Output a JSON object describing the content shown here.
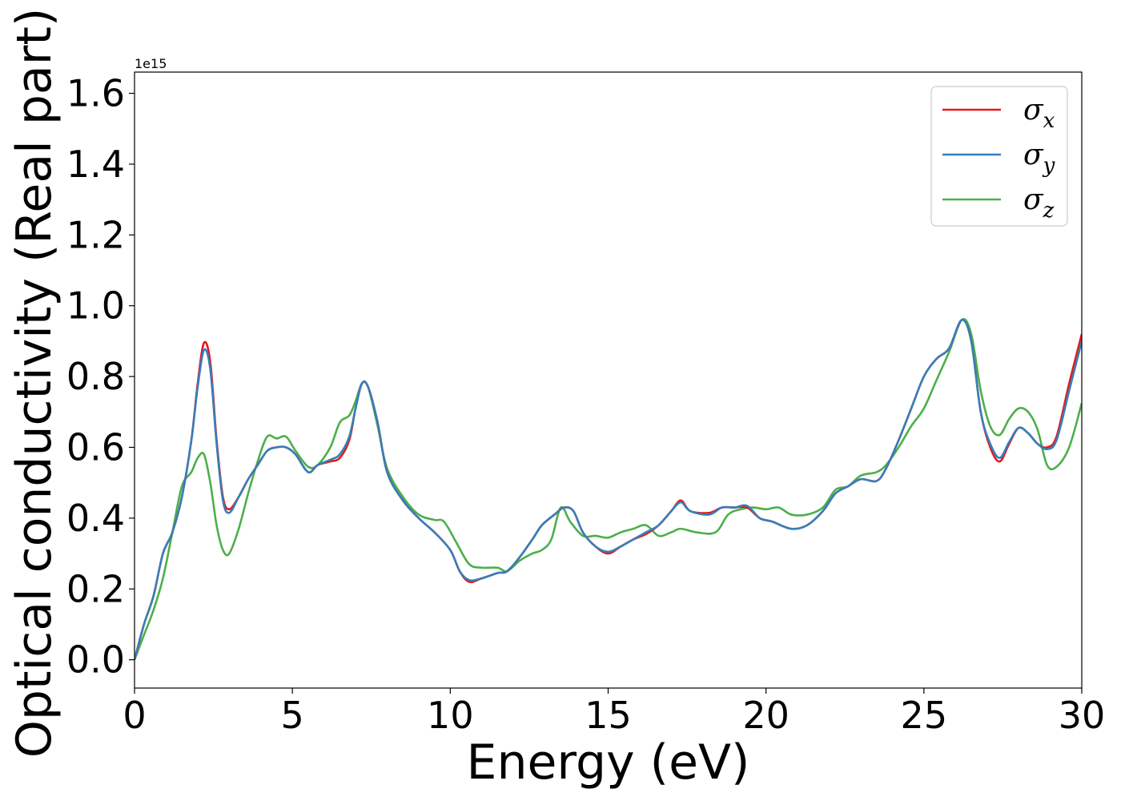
{
  "chart_data": {
    "type": "line",
    "title": "",
    "xlabel": "Energy (eV)",
    "ylabel": "Optical conductivity (Real part)",
    "y_offset_text": "1e15",
    "xlim": [
      0,
      30
    ],
    "ylim": [
      -0.08,
      1.66
    ],
    "xticks": [
      0,
      5,
      10,
      15,
      20,
      25,
      30
    ],
    "xtick_labels": [
      "0",
      "5",
      "10",
      "15",
      "20",
      "25",
      "30"
    ],
    "yticks": [
      0.0,
      0.2,
      0.4,
      0.6,
      0.8,
      1.0,
      1.2,
      1.4,
      1.6
    ],
    "ytick_labels": [
      "0.0",
      "0.2",
      "0.4",
      "0.6",
      "0.8",
      "1.0",
      "1.2",
      "1.4",
      "1.6"
    ],
    "grid": false,
    "legend_position": "top-right",
    "series": [
      {
        "name": "σx",
        "legend_main": "σ",
        "legend_sub": "x",
        "color": "#e41a1c",
        "points": [
          [
            0,
            0.0
          ],
          [
            0.3,
            0.1
          ],
          [
            0.6,
            0.18
          ],
          [
            0.9,
            0.3
          ],
          [
            1.2,
            0.36
          ],
          [
            1.5,
            0.46
          ],
          [
            1.8,
            0.62
          ],
          [
            2.0,
            0.78
          ],
          [
            2.2,
            0.895
          ],
          [
            2.4,
            0.84
          ],
          [
            2.6,
            0.62
          ],
          [
            2.8,
            0.46
          ],
          [
            3.0,
            0.425
          ],
          [
            3.3,
            0.46
          ],
          [
            3.6,
            0.51
          ],
          [
            3.9,
            0.55
          ],
          [
            4.2,
            0.59
          ],
          [
            4.5,
            0.6
          ],
          [
            4.8,
            0.6
          ],
          [
            5.1,
            0.58
          ],
          [
            5.5,
            0.53
          ],
          [
            5.8,
            0.55
          ],
          [
            6.2,
            0.56
          ],
          [
            6.5,
            0.57
          ],
          [
            6.8,
            0.62
          ],
          [
            7.0,
            0.71
          ],
          [
            7.2,
            0.78
          ],
          [
            7.4,
            0.77
          ],
          [
            7.7,
            0.67
          ],
          [
            8.0,
            0.53
          ],
          [
            8.5,
            0.45
          ],
          [
            9.0,
            0.4
          ],
          [
            9.5,
            0.36
          ],
          [
            10.0,
            0.31
          ],
          [
            10.3,
            0.25
          ],
          [
            10.6,
            0.22
          ],
          [
            11.0,
            0.23
          ],
          [
            11.5,
            0.245
          ],
          [
            11.8,
            0.25
          ],
          [
            12.2,
            0.29
          ],
          [
            12.6,
            0.34
          ],
          [
            12.9,
            0.38
          ],
          [
            13.3,
            0.41
          ],
          [
            13.6,
            0.43
          ],
          [
            13.9,
            0.42
          ],
          [
            14.2,
            0.36
          ],
          [
            14.6,
            0.32
          ],
          [
            15.0,
            0.3
          ],
          [
            15.4,
            0.32
          ],
          [
            15.8,
            0.34
          ],
          [
            16.2,
            0.355
          ],
          [
            16.6,
            0.38
          ],
          [
            17.0,
            0.42
          ],
          [
            17.3,
            0.45
          ],
          [
            17.6,
            0.42
          ],
          [
            18.2,
            0.415
          ],
          [
            18.6,
            0.43
          ],
          [
            19.0,
            0.43
          ],
          [
            19.4,
            0.43
          ],
          [
            19.8,
            0.4
          ],
          [
            20.2,
            0.39
          ],
          [
            20.8,
            0.37
          ],
          [
            21.3,
            0.38
          ],
          [
            21.8,
            0.42
          ],
          [
            22.2,
            0.47
          ],
          [
            22.6,
            0.49
          ],
          [
            23.0,
            0.51
          ],
          [
            23.5,
            0.505
          ],
          [
            23.8,
            0.54
          ],
          [
            24.2,
            0.62
          ],
          [
            24.6,
            0.71
          ],
          [
            25.0,
            0.8
          ],
          [
            25.4,
            0.85
          ],
          [
            25.8,
            0.88
          ],
          [
            26.2,
            0.96
          ],
          [
            26.5,
            0.9
          ],
          [
            26.8,
            0.7
          ],
          [
            27.1,
            0.6
          ],
          [
            27.4,
            0.56
          ],
          [
            27.7,
            0.61
          ],
          [
            28.0,
            0.655
          ],
          [
            28.3,
            0.64
          ],
          [
            28.6,
            0.61
          ],
          [
            28.9,
            0.6
          ],
          [
            29.2,
            0.63
          ],
          [
            29.6,
            0.78
          ],
          [
            30.0,
            0.92
          ]
        ]
      },
      {
        "name": "σy",
        "legend_main": "σ",
        "legend_sub": "y",
        "color": "#377eb8",
        "points": [
          [
            0,
            0.0
          ],
          [
            0.3,
            0.1
          ],
          [
            0.6,
            0.18
          ],
          [
            0.9,
            0.3
          ],
          [
            1.2,
            0.36
          ],
          [
            1.5,
            0.46
          ],
          [
            1.8,
            0.62
          ],
          [
            2.0,
            0.77
          ],
          [
            2.2,
            0.875
          ],
          [
            2.4,
            0.82
          ],
          [
            2.6,
            0.61
          ],
          [
            2.8,
            0.45
          ],
          [
            3.0,
            0.415
          ],
          [
            3.3,
            0.46
          ],
          [
            3.6,
            0.51
          ],
          [
            3.9,
            0.55
          ],
          [
            4.2,
            0.59
          ],
          [
            4.5,
            0.6
          ],
          [
            4.8,
            0.6
          ],
          [
            5.1,
            0.58
          ],
          [
            5.5,
            0.53
          ],
          [
            5.8,
            0.55
          ],
          [
            6.2,
            0.565
          ],
          [
            6.5,
            0.58
          ],
          [
            6.8,
            0.63
          ],
          [
            7.0,
            0.71
          ],
          [
            7.2,
            0.78
          ],
          [
            7.4,
            0.77
          ],
          [
            7.7,
            0.67
          ],
          [
            8.0,
            0.53
          ],
          [
            8.5,
            0.45
          ],
          [
            9.0,
            0.4
          ],
          [
            9.5,
            0.36
          ],
          [
            10.0,
            0.31
          ],
          [
            10.3,
            0.25
          ],
          [
            10.6,
            0.225
          ],
          [
            11.0,
            0.23
          ],
          [
            11.5,
            0.245
          ],
          [
            11.8,
            0.25
          ],
          [
            12.2,
            0.29
          ],
          [
            12.6,
            0.34
          ],
          [
            12.9,
            0.38
          ],
          [
            13.3,
            0.41
          ],
          [
            13.6,
            0.43
          ],
          [
            13.9,
            0.42
          ],
          [
            14.2,
            0.36
          ],
          [
            14.6,
            0.32
          ],
          [
            15.0,
            0.305
          ],
          [
            15.4,
            0.32
          ],
          [
            15.8,
            0.34
          ],
          [
            16.2,
            0.36
          ],
          [
            16.6,
            0.38
          ],
          [
            17.0,
            0.42
          ],
          [
            17.3,
            0.445
          ],
          [
            17.6,
            0.42
          ],
          [
            18.2,
            0.41
          ],
          [
            18.6,
            0.43
          ],
          [
            19.0,
            0.43
          ],
          [
            19.4,
            0.435
          ],
          [
            19.8,
            0.4
          ],
          [
            20.2,
            0.39
          ],
          [
            20.8,
            0.37
          ],
          [
            21.3,
            0.38
          ],
          [
            21.8,
            0.42
          ],
          [
            22.2,
            0.47
          ],
          [
            22.6,
            0.49
          ],
          [
            23.0,
            0.51
          ],
          [
            23.5,
            0.505
          ],
          [
            23.8,
            0.54
          ],
          [
            24.2,
            0.62
          ],
          [
            24.6,
            0.71
          ],
          [
            25.0,
            0.8
          ],
          [
            25.4,
            0.85
          ],
          [
            25.8,
            0.88
          ],
          [
            26.2,
            0.96
          ],
          [
            26.5,
            0.9
          ],
          [
            26.8,
            0.7
          ],
          [
            27.1,
            0.61
          ],
          [
            27.4,
            0.57
          ],
          [
            27.7,
            0.615
          ],
          [
            28.0,
            0.655
          ],
          [
            28.3,
            0.64
          ],
          [
            28.6,
            0.61
          ],
          [
            28.9,
            0.595
          ],
          [
            29.2,
            0.62
          ],
          [
            29.6,
            0.76
          ],
          [
            30.0,
            0.9
          ]
        ]
      },
      {
        "name": "σz",
        "legend_main": "σ",
        "legend_sub": "z",
        "color": "#4daf4a",
        "points": [
          [
            0,
            0.0
          ],
          [
            0.3,
            0.07
          ],
          [
            0.6,
            0.14
          ],
          [
            0.9,
            0.23
          ],
          [
            1.2,
            0.36
          ],
          [
            1.5,
            0.49
          ],
          [
            1.8,
            0.53
          ],
          [
            2.0,
            0.57
          ],
          [
            2.2,
            0.58
          ],
          [
            2.4,
            0.5
          ],
          [
            2.6,
            0.38
          ],
          [
            2.8,
            0.31
          ],
          [
            3.0,
            0.3
          ],
          [
            3.3,
            0.37
          ],
          [
            3.6,
            0.47
          ],
          [
            3.9,
            0.56
          ],
          [
            4.2,
            0.63
          ],
          [
            4.5,
            0.625
          ],
          [
            4.8,
            0.63
          ],
          [
            5.1,
            0.59
          ],
          [
            5.5,
            0.545
          ],
          [
            5.8,
            0.55
          ],
          [
            6.2,
            0.6
          ],
          [
            6.5,
            0.67
          ],
          [
            6.8,
            0.69
          ],
          [
            7.0,
            0.73
          ],
          [
            7.2,
            0.78
          ],
          [
            7.4,
            0.77
          ],
          [
            7.7,
            0.66
          ],
          [
            8.0,
            0.54
          ],
          [
            8.5,
            0.46
          ],
          [
            9.0,
            0.41
          ],
          [
            9.5,
            0.395
          ],
          [
            9.8,
            0.39
          ],
          [
            10.2,
            0.33
          ],
          [
            10.6,
            0.27
          ],
          [
            11.0,
            0.26
          ],
          [
            11.5,
            0.26
          ],
          [
            11.8,
            0.25
          ],
          [
            12.2,
            0.28
          ],
          [
            12.6,
            0.3
          ],
          [
            12.9,
            0.31
          ],
          [
            13.2,
            0.34
          ],
          [
            13.5,
            0.43
          ],
          [
            13.8,
            0.39
          ],
          [
            14.2,
            0.35
          ],
          [
            14.6,
            0.35
          ],
          [
            15.0,
            0.345
          ],
          [
            15.4,
            0.36
          ],
          [
            15.8,
            0.37
          ],
          [
            16.2,
            0.38
          ],
          [
            16.6,
            0.35
          ],
          [
            17.0,
            0.36
          ],
          [
            17.3,
            0.37
          ],
          [
            17.8,
            0.36
          ],
          [
            18.4,
            0.36
          ],
          [
            18.8,
            0.41
          ],
          [
            19.2,
            0.425
          ],
          [
            19.6,
            0.43
          ],
          [
            20.0,
            0.425
          ],
          [
            20.4,
            0.43
          ],
          [
            20.8,
            0.41
          ],
          [
            21.3,
            0.41
          ],
          [
            21.8,
            0.43
          ],
          [
            22.2,
            0.48
          ],
          [
            22.6,
            0.49
          ],
          [
            23.0,
            0.52
          ],
          [
            23.5,
            0.53
          ],
          [
            23.8,
            0.55
          ],
          [
            24.2,
            0.6
          ],
          [
            24.6,
            0.66
          ],
          [
            25.0,
            0.71
          ],
          [
            25.4,
            0.79
          ],
          [
            25.8,
            0.87
          ],
          [
            26.2,
            0.96
          ],
          [
            26.5,
            0.92
          ],
          [
            26.8,
            0.76
          ],
          [
            27.1,
            0.66
          ],
          [
            27.4,
            0.635
          ],
          [
            27.7,
            0.68
          ],
          [
            28.0,
            0.71
          ],
          [
            28.3,
            0.7
          ],
          [
            28.6,
            0.65
          ],
          [
            28.9,
            0.55
          ],
          [
            29.2,
            0.545
          ],
          [
            29.6,
            0.6
          ],
          [
            30.0,
            0.725
          ]
        ]
      }
    ]
  }
}
